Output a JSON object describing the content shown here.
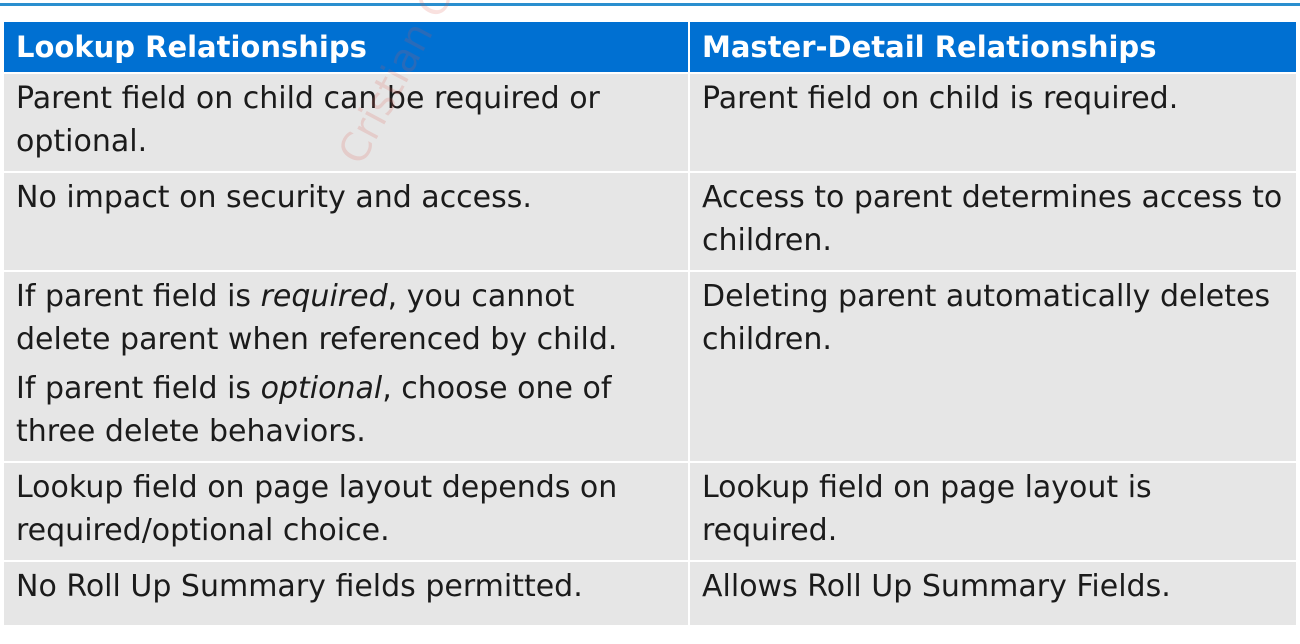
{
  "table": {
    "headers": [
      "Lookup Relationships",
      "Master-Detail Relationships"
    ],
    "rows": [
      {
        "lookup": "Parent field on child can be required or optional.",
        "master": "Parent field on child is required."
      },
      {
        "lookup": "No impact on security and access.",
        "master": "Access to parent determines access to children."
      },
      {
        "lookup_p1_a": "If parent field is ",
        "lookup_p1_em": "required",
        "lookup_p1_b": ", you cannot delete parent when referenced by child.",
        "lookup_p2_a": "If parent field is ",
        "lookup_p2_em": "optional",
        "lookup_p2_b": ", choose one of three delete behaviors.",
        "master": "Deleting parent automatically deletes children."
      },
      {
        "lookup": "Lookup field on page layout depends on required/optional choice.",
        "master": "Lookup field on page layout is required."
      },
      {
        "lookup": "No Roll Up Summary fields permitted.",
        "master": "Allows Roll Up Summary Fields."
      }
    ]
  },
  "watermark": "Cristian Carc",
  "colors": {
    "header_bg": "#0070d2",
    "row_bg": "#e6e6e6",
    "top_rule": "#2a8fcf"
  }
}
